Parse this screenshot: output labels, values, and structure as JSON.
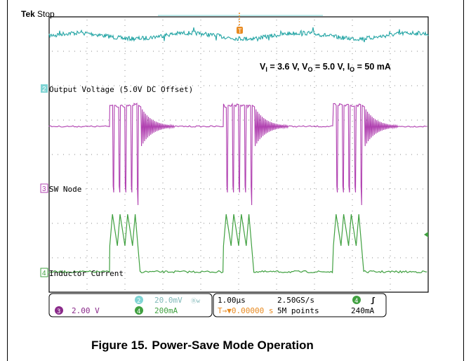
{
  "scope": {
    "brand": "Tek",
    "run_state": "Stop",
    "conditions": {
      "vi_label": "V",
      "vi_sub": "I",
      "vi_value": " = 3.6 V, ",
      "vo_label": "V",
      "vo_sub": "O",
      "vo_value": " = 5.0 V, ",
      "io_label": "I",
      "io_sub": "O",
      "io_value": " = 50 mA"
    },
    "trigger_marker": "T",
    "channels": {
      "ch2": {
        "number": "2",
        "label": "Output Voltage (5.0V DC Offset)",
        "color": "#25a5a5"
      },
      "ch3": {
        "number": "3",
        "label": "SW Node",
        "color": "#b040b0"
      },
      "ch4": {
        "number": "4",
        "label": "Inductor Current",
        "color": "#40a040"
      }
    },
    "readout": {
      "ch2_num": "2",
      "ch2_scale": "20.0mV",
      "ch2_bw": "Ⓑw",
      "ch3_num": "3",
      "ch3_scale": "2.00 V",
      "ch4_num": "4",
      "ch4_scale": "200mA",
      "timebase": "1.00µs",
      "sample_rate": "2.50GS/s",
      "trigger_offset": "T→▼0.00000 s",
      "record_length": "5M points",
      "trig_channel": "4",
      "trig_slope": "ʃ",
      "trig_level": "240mA"
    }
  },
  "caption": {
    "number": "Figure 15.",
    "title": "Power-Save Mode Operation"
  },
  "chart_data": {
    "type": "line",
    "title": "Figure 15. Power-Save Mode Operation",
    "xlabel": "",
    "ylabel": "",
    "x_units": "µs",
    "x_scale_per_div": 1.0,
    "xlim": [
      -5,
      5
    ],
    "grid": true,
    "burst_windows_us": [
      [
        -3.4,
        -2.6
      ],
      [
        -0.4,
        0.4
      ],
      [
        2.5,
        3.3
      ]
    ],
    "burst_period_us": 2.95,
    "series": [
      {
        "name": "Output Voltage (5.0V DC Offset)",
        "channel": "2",
        "scale_per_div": "20.0mV",
        "description_values": {
          "ripple_pp_mV": 10
        }
      },
      {
        "name": "SW Node",
        "channel": "3",
        "scale_per_div": "2.00 V",
        "description_values": {
          "idle_V": 5.0,
          "high_V": 5.0,
          "low_V": 0.0,
          "pulses_per_burst": 5
        }
      },
      {
        "name": "Inductor Current",
        "channel": "4",
        "scale_per_div": "200mA",
        "description_values": {
          "idle_mA": 0,
          "peak_mA": 400,
          "valley_mA": 150,
          "pulses_per_burst": 4
        }
      }
    ]
  }
}
